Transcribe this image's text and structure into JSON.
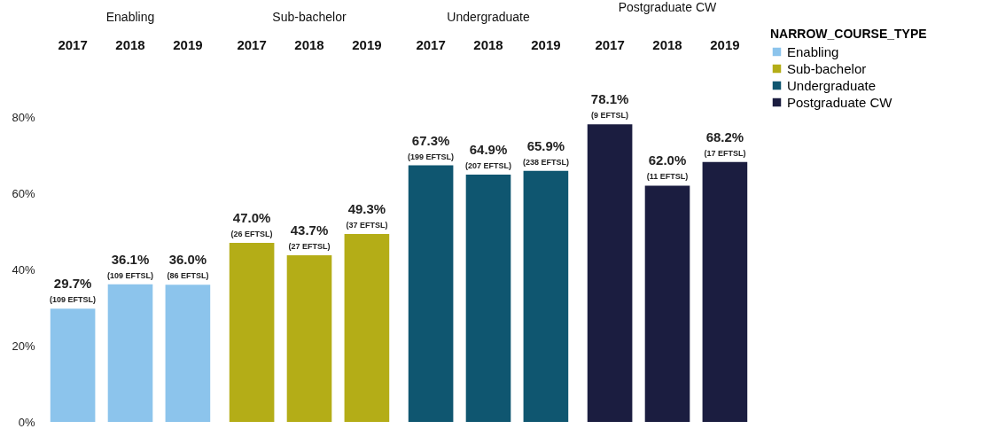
{
  "chart_data": [
    {
      "type": "bar",
      "title": "Enabling",
      "categories": [
        "2017",
        "2018",
        "2019"
      ],
      "ylim": [
        0,
        80
      ],
      "yticks": [
        {
          "value": 0,
          "label": "0%"
        },
        {
          "value": 20,
          "label": "20%"
        },
        {
          "value": 40,
          "label": "40%"
        },
        {
          "value": 60,
          "label": "60%"
        },
        {
          "value": 80,
          "label": "80%"
        }
      ],
      "series": [
        {
          "name": "Enabling",
          "color": "#8cc4ec",
          "values": [
            29.7,
            36.1,
            36.0
          ],
          "value_labels": [
            "29.7%",
            "36.1%",
            "36.0%"
          ]
        }
      ],
      "annotations": [
        {
          "text": "(109 EFTSL)",
          "x": "2017",
          "y": 29.7
        },
        {
          "text": "(109 EFTSL)",
          "x": "2018",
          "y": 36.1
        },
        {
          "text": "(86 EFTSL)",
          "x": "2019",
          "y": 36.0
        }
      ]
    },
    {
      "type": "bar",
      "title": "Sub-bachelor",
      "categories": [
        "2017",
        "2018",
        "2019"
      ],
      "ylim": [
        0,
        80
      ],
      "tick_labels": "x",
      "series": [
        {
          "name": "Sub-bachelor",
          "color": "#b4ad17",
          "values": [
            47.0,
            43.7,
            49.3
          ],
          "value_labels": [
            "47.0%",
            "43.7%",
            "49.3%"
          ]
        }
      ],
      "annotations": [
        {
          "text": "(26 EFTSL)",
          "x": "2017",
          "y": 47.0
        },
        {
          "text": "(27 EFTSL)",
          "x": "2018",
          "y": 43.7
        },
        {
          "text": "(37 EFTSL)",
          "x": "2019",
          "y": 49.3
        }
      ]
    },
    {
      "type": "bar",
      "title": "Undergraduate",
      "categories": [
        "2017",
        "2018",
        "2019"
      ],
      "ylim": [
        0,
        80
      ],
      "tick_labels": "x",
      "series": [
        {
          "name": "Undergraduate",
          "color": "#0f5670",
          "values": [
            67.3,
            64.9,
            65.9
          ],
          "value_labels": [
            "67.3%",
            "64.9%",
            "65.9%"
          ]
        }
      ],
      "annotations": [
        {
          "text": "(199 EFTSL)",
          "x": "2017",
          "y": 67.3
        },
        {
          "text": "(207 EFTSL)",
          "x": "2018",
          "y": 64.9
        },
        {
          "text": "(238 EFTSL)",
          "x": "2019",
          "y": 65.9
        }
      ]
    },
    {
      "type": "bar",
      "title": "Postgraduate CW",
      "categories": [
        "2017",
        "2018",
        "2019"
      ],
      "ylim": [
        0,
        80
      ],
      "tick_labels": "x",
      "legend": "right",
      "legend_title": "NARROW_COURSE_TYPE",
      "series": [
        {
          "name": "Postgraduate CW",
          "color": "#1b1d40",
          "values": [
            78.1,
            62.0,
            68.2
          ],
          "value_labels": [
            "78.1%",
            "62.0%",
            "68.2%"
          ]
        }
      ],
      "annotations": [
        {
          "text": "(9 EFTSL)",
          "x": "2017",
          "y": 78.1
        },
        {
          "text": "(11 EFTSL)",
          "x": "2018",
          "y": 62.0
        },
        {
          "text": "(17 EFTSL)",
          "x": "2019",
          "y": 68.2
        }
      ]
    }
  ]
}
